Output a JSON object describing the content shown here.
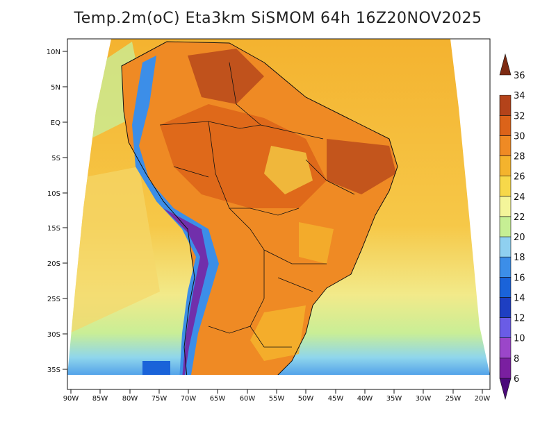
{
  "title": "Temp.2m(oC) Eta3km SiSMOM 64h 16Z20NOV2025",
  "map": {
    "region": "South America",
    "variable": "2 m temperature",
    "units": "oC",
    "lat_ticks": [
      "10N",
      "5N",
      "EQ",
      "5S",
      "10S",
      "15S",
      "20S",
      "25S",
      "30S",
      "35S"
    ],
    "lon_ticks": [
      "90W",
      "85W",
      "80W",
      "75W",
      "70W",
      "65W",
      "60W",
      "55W",
      "50W",
      "45W",
      "40W",
      "35W",
      "30W",
      "25W",
      "20W"
    ]
  },
  "colorbar": {
    "labels": [
      "6",
      "8",
      "10",
      "12",
      "14",
      "16",
      "18",
      "20",
      "22",
      "24",
      "26",
      "28",
      "30",
      "32",
      "34",
      "36"
    ],
    "colors": [
      "#4b0a7a",
      "#7a1fa0",
      "#9b46c9",
      "#6a5ce6",
      "#1e3fc2",
      "#1a63d9",
      "#3c8ee8",
      "#8fd0f0",
      "#c6ef94",
      "#f4f59a",
      "#f7d84a",
      "#f4b32d",
      "#ef8a24",
      "#dc6319",
      "#b4431a",
      "#7d2a12"
    ]
  }
}
